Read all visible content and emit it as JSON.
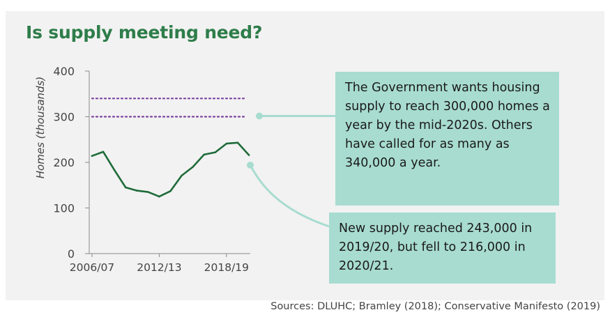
{
  "title": "Is supply meeting need?",
  "sources": "Sources: DLUHC; Bramley (2018); Conservative Manifesto (2019)",
  "callouts": {
    "target": "The Government wants housing supply to reach 300,000 homes a year by the mid-2020s. Others have called for as many as 340,000 a year.",
    "supply": "New supply reached 243,000 in 2019/20, but fell to 216,000 in 2020/21."
  },
  "colors": {
    "line": "#1f6b3a",
    "target_lines": "#7a3fa0",
    "callout_bg": "#a8dcd0",
    "title": "#2e7d4a"
  },
  "chart_data": {
    "type": "line",
    "ylabel": "Homes (thousands)",
    "xlabel": "",
    "ylim": [
      0,
      400
    ],
    "yticks": [
      0,
      100,
      200,
      300,
      400
    ],
    "x": [
      "2006/07",
      "2007/08",
      "2008/09",
      "2009/10",
      "2010/11",
      "2011/12",
      "2012/13",
      "2013/14",
      "2014/15",
      "2015/16",
      "2016/17",
      "2017/18",
      "2018/19",
      "2019/20",
      "2020/21"
    ],
    "xtick_labels": [
      "2006/07",
      "2012/13",
      "2018/19"
    ],
    "series": [
      {
        "values": [
          214,
          223,
          183,
          145,
          138,
          135,
          125,
          137,
          171,
          190,
          217,
          222,
          241,
          243,
          216
        ]
      }
    ],
    "reference_lines": [
      300,
      340
    ],
    "grid": false
  }
}
